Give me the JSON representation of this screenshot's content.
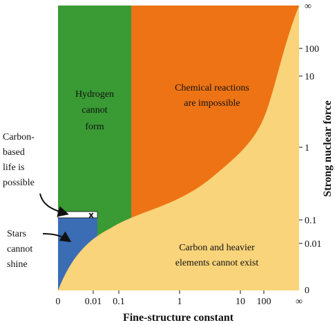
{
  "regions": {
    "hydrogen": [
      "Hydrogen",
      "cannot",
      "form"
    ],
    "chemical": [
      "Chemical reactions",
      "are impossible"
    ],
    "carbon": [
      "Carbon and heavier",
      "elements cannot exist"
    ],
    "stars": [
      "Stars",
      "cannot",
      "shine"
    ],
    "life": [
      "Carbon-",
      "based",
      "life is",
      "possible"
    ],
    "marker": "x"
  },
  "x_axis": {
    "title": "Fine-structure constant",
    "ticks": [
      "0",
      "0.01",
      "0.1",
      "1",
      "10",
      "100",
      "∞"
    ]
  },
  "y_axis": {
    "title": "Strong nuclear force",
    "ticks": [
      "∞",
      "100",
      "10",
      "1",
      "0.1",
      "0.01",
      "0"
    ]
  }
}
